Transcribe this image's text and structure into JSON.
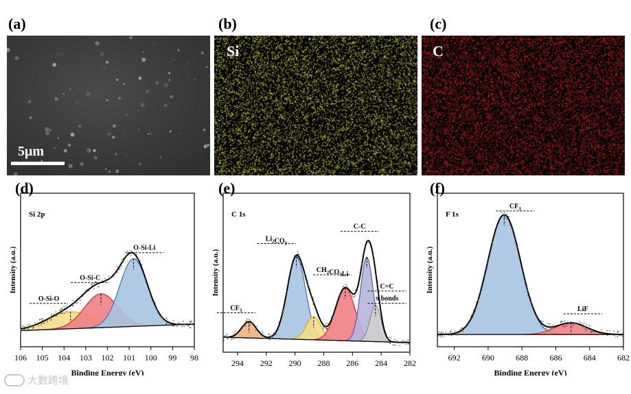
{
  "panels": {
    "a": {
      "label": "(a)",
      "scale_bar": "5μm"
    },
    "b": {
      "label": "(b)",
      "element": "Si",
      "dot_color": "#d8d84a"
    },
    "c": {
      "label": "(c)",
      "element": "C",
      "dot_color": "#d42020"
    },
    "d": {
      "label": "(d)"
    },
    "e": {
      "label": "(e)"
    },
    "f": {
      "label": "(f)"
    }
  },
  "watermark": "大數跨境",
  "colors": {
    "blue": "#a7c4e2",
    "red": "#ef7f85",
    "yellow": "#f6dc8c",
    "orange": "#f0b27c",
    "purple": "#b4b5dc",
    "grey": "#cfcfcf"
  },
  "chart_data": [
    {
      "id": "d",
      "type": "line",
      "title": "Si 2p",
      "xlabel": "Binding Energy (eV)",
      "ylabel": "Intensity (a.u.)",
      "xlim": [
        106,
        98
      ],
      "x_ticks": [
        106,
        105,
        104,
        103,
        102,
        101,
        100,
        99,
        98
      ],
      "ylim": [
        0,
        1
      ],
      "baseline": [
        {
          "x": 106,
          "y": 0.05
        },
        {
          "x": 98,
          "y": 0.1
        }
      ],
      "envelope_width": 0.63,
      "peaks": [
        {
          "name": "O-Si-O",
          "center": 103.7,
          "height": 0.13,
          "fwhm": 2.5,
          "color": "#f6dc8c"
        },
        {
          "name": "O-Si-C",
          "center": 102.3,
          "height": 0.26,
          "fwhm": 1.8,
          "color": "#ef7f85"
        },
        {
          "name": "O-Si-Li",
          "center": 100.8,
          "height": 0.52,
          "fwhm": 1.5,
          "color": "#a7c4e2"
        }
      ],
      "labels": [
        {
          "text": "O-Si-O",
          "x": 104.7,
          "y": 0.28
        },
        {
          "text": "O-Si-C",
          "x": 102.8,
          "y": 0.44
        },
        {
          "text": "O-Si-Li",
          "x": 100.3,
          "y": 0.67
        }
      ]
    },
    {
      "id": "e",
      "type": "line",
      "title": "C 1s",
      "xlabel": "Binding Energy",
      "ylabel": "Intensity (a.u.)",
      "xlim": [
        295,
        282
      ],
      "x_ticks": [
        294,
        292,
        290,
        288,
        286,
        284,
        282
      ],
      "ylim": [
        0,
        1
      ],
      "baseline": [
        {
          "x": 295,
          "y": 0.04
        },
        {
          "x": 282,
          "y": 0.0
        }
      ],
      "envelope_width": 0.82,
      "peaks": [
        {
          "name": "CF3",
          "center": 293.2,
          "height": 0.12,
          "fwhm": 1.2,
          "color": "#f0b27c"
        },
        {
          "name": "Li2CO3",
          "center": 289.9,
          "height": 0.61,
          "fwhm": 1.5,
          "color": "#a7c4e2"
        },
        {
          "name": "CH2CO3Li",
          "center": 288.7,
          "height": 0.17,
          "fwhm": 1.2,
          "color": "#f6dc8c"
        },
        {
          "name": "CH2CO3Li",
          "center": 286.5,
          "height": 0.39,
          "fwhm": 1.6,
          "color": "#ef7f85"
        },
        {
          "name": "C-C",
          "center": 285.0,
          "height": 0.62,
          "fwhm": 1.05,
          "color": "#b4b5dc"
        },
        {
          "name": "C=C π bonds",
          "center": 284.4,
          "height": 0.27,
          "fwhm": 0.9,
          "color": "#cfcfcf"
        }
      ],
      "labels": [
        {
          "text": "CF3",
          "x": 294.1,
          "y": 0.24
        },
        {
          "text": "Li2CO3",
          "x": 291.3,
          "y": 0.75
        },
        {
          "text": "CH2CO3Li",
          "x": 287.4,
          "y": 0.52
        },
        {
          "text": "C-C",
          "x": 285.5,
          "y": 0.84
        },
        {
          "text": "C=C",
          "x": 283.6,
          "y": 0.4
        },
        {
          "text": "π bonds",
          "x": 283.6,
          "y": 0.31
        }
      ]
    },
    {
      "id": "f",
      "type": "line",
      "title": "F 1s",
      "xlabel": "Binding Energy (eV)",
      "ylabel": "Intensity (a.u.)",
      "xlim": [
        693,
        682
      ],
      "x_ticks": [
        692,
        690,
        688,
        686,
        684,
        682
      ],
      "ylim": [
        0,
        1
      ],
      "baseline": [
        {
          "x": 693,
          "y": 0.02
        },
        {
          "x": 682,
          "y": 0.02
        }
      ],
      "envelope_width": 1.0,
      "peaks": [
        {
          "name": "CF3",
          "center": 689.05,
          "height": 0.92,
          "fwhm": 2.3,
          "color": "#a7c4e2"
        },
        {
          "name": "LiF",
          "center": 685.1,
          "height": 0.09,
          "fwhm": 2.2,
          "color": "#ef7f85"
        }
      ],
      "labels": [
        {
          "text": "CF3",
          "x": 688.4,
          "y": 0.99
        },
        {
          "text": "LiF",
          "x": 684.4,
          "y": 0.2
        }
      ]
    }
  ]
}
